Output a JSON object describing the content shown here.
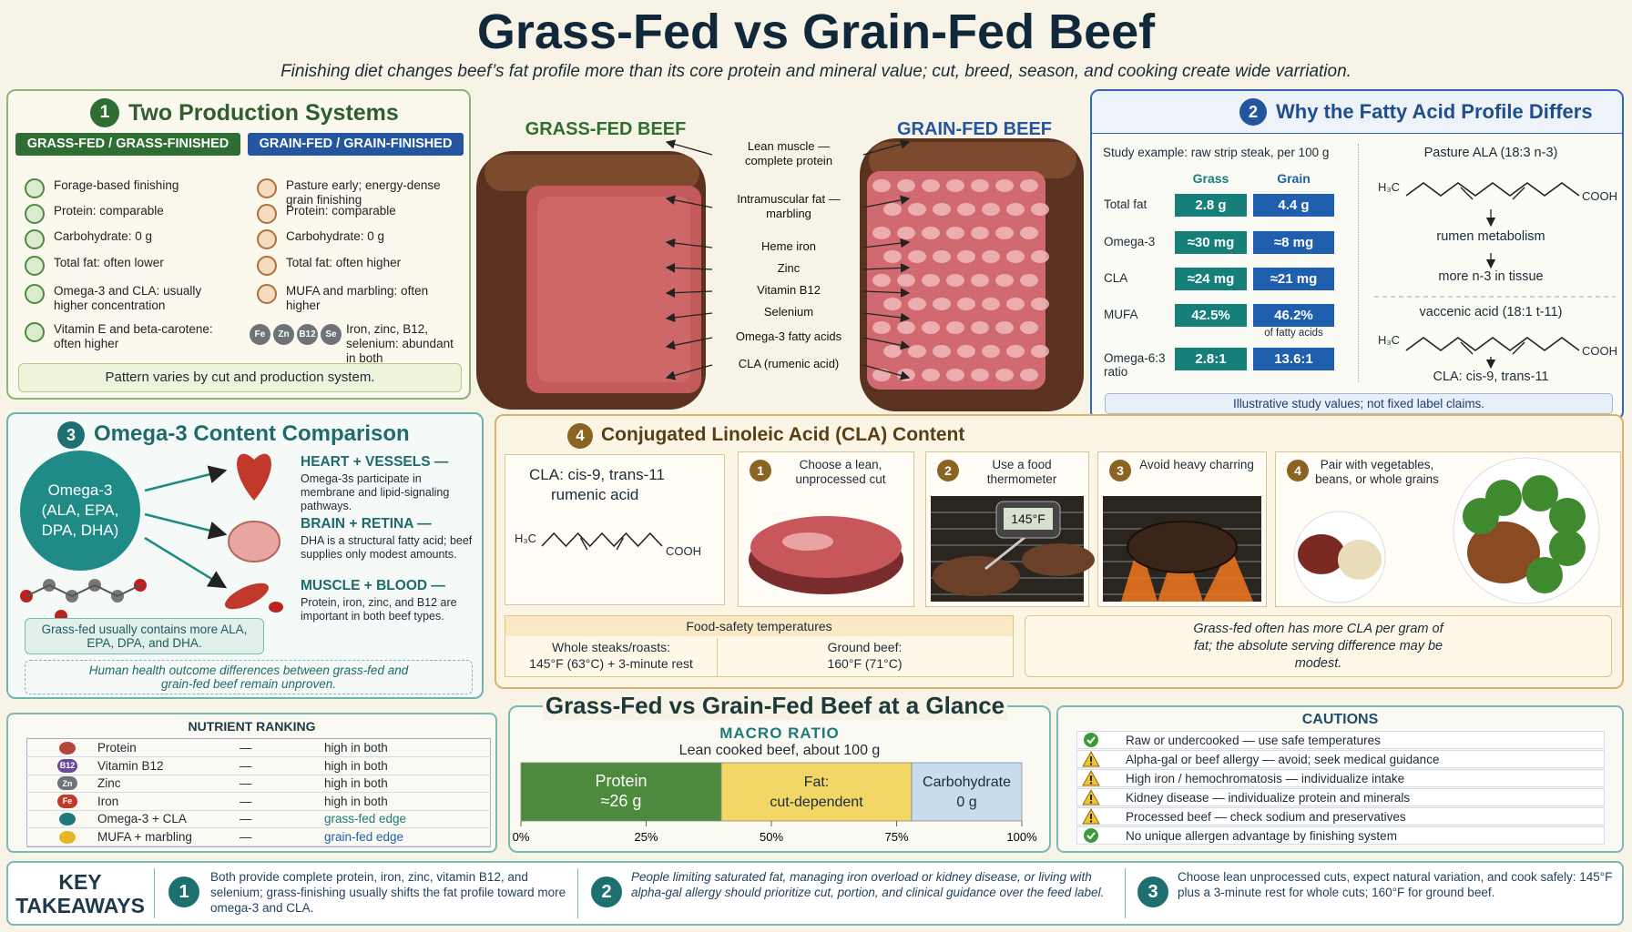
{
  "header": {
    "title": "Grass-Fed vs Grain-Fed Beef",
    "subtitle": "Finishing diet changes beef’s fat profile more than its core protein and mineral value; cut, breed, season, and cooking create wide varriation."
  },
  "production": {
    "number": "1",
    "title": "Two Production Systems",
    "columns": [
      {
        "header": "GRASS-FED / GRASS-FINISHED",
        "items": [
          "Forage-based finishing",
          "Protein: comparable",
          "Carbohydrate: 0 g",
          "Total fat: often lower",
          "Omega-3 and CLA: usually higher concentration",
          "Vitamin E and beta-carotene: often higher"
        ]
      },
      {
        "header": "GRAIN-FED / GRAIN-FINISHED",
        "items": [
          "Pasture early; energy-dense grain finishing",
          "Protein: comparable",
          "Carbohydrate: 0 g",
          "Total fat: often higher",
          "MUFA and marbling: often higher",
          "Iron, zinc, B12, selenium: abundant in both"
        ]
      }
    ],
    "minerals": [
      "Fe",
      "Zn",
      "B12",
      "Se"
    ],
    "note": "Pattern varies by cut and production system."
  },
  "steaks": {
    "grass_label": "GRASS-FED BEEF",
    "grain_label": "GRAIN-FED BEEF",
    "labels": [
      "Lean muscle — complete protein",
      "Intramuscular fat — marbling",
      "Heme iron",
      "Zinc",
      "Vitamin B12",
      "Selenium",
      "Omega-3 fatty acids",
      "CLA (rumenic acid)"
    ]
  },
  "fatty": {
    "number": "2",
    "title": "Why the Fatty Acid Profile Differs",
    "study": "Study example: raw strip steak, per 100 g",
    "col_headers": [
      "Grass",
      "Grain"
    ],
    "rows": [
      {
        "label": "Total fat",
        "grass": "2.8 g",
        "grain": "4.4 g"
      },
      {
        "label": "Omega-3",
        "grass": "≈30 mg",
        "grain": "≈8 mg"
      },
      {
        "label": "CLA",
        "grass": "≈24 mg",
        "grain": "≈21 mg"
      },
      {
        "label": "MUFA",
        "grass": "42.5%",
        "grain": "46.2%"
      },
      {
        "label": "Omega-6:3 ratio",
        "grass": "2.8:1",
        "grain": "13.6:1"
      }
    ],
    "mufa_note": "of fatty acids",
    "pathway": {
      "ala": "Pasture ALA (18:3 n-3)",
      "step1": "rumen metabolism",
      "step2": "more n-3 in tissue",
      "vaccenic": "vaccenic acid (18:1 t-11)",
      "cla": "CLA: cis-9, trans-11"
    },
    "methyl": "H₃C",
    "carboxyl": "COOH",
    "footnote": "Illustrative study values; not fixed label claims."
  },
  "omega": {
    "number": "3",
    "title": "Omega-3 Content Comparison",
    "center": "Omega-3 (ALA, EPA, DPA, DHA)",
    "items": [
      {
        "title": "HEART + VESSELS —",
        "text": "Omega-3s participate in membrane and lipid-signaling pathways."
      },
      {
        "title": "BRAIN + RETINA —",
        "text": "DHA is a structural fatty acid; beef supplies only modest amounts."
      },
      {
        "title": "MUSCLE + BLOOD —",
        "text": "Protein, iron, zinc, and B12 are important in both beef types."
      }
    ],
    "note": "Grass-fed usually contains more ALA, EPA, DPA, and DHA.",
    "caveat": "Human health outcome differences between grass-fed and grain-fed beef remain unproven."
  },
  "cla": {
    "number": "4",
    "title": "Conjugated Linoleic Acid (CLA) Content",
    "structure_label": "CLA: cis-9, trans-11",
    "structure_name": "rumenic acid",
    "tips": [
      {
        "number": "1",
        "text": "Choose a lean, unprocessed cut"
      },
      {
        "number": "2",
        "text": "Use a food thermometer"
      },
      {
        "number": "3",
        "text": "Avoid heavy charring"
      },
      {
        "number": "4",
        "text": "Pair with vegetables, beans, or whole grains"
      }
    ],
    "thermometer": "145°F",
    "safety": {
      "title": "Food-safety temperatures",
      "cells": [
        {
          "label": "Whole steaks/roasts:",
          "value": "145°F (63°C) + 3-minute rest"
        },
        {
          "label": "Ground beef:",
          "value": "160°F (71°C)"
        }
      ]
    },
    "note": "Grass-fed often has more CLA per gram of fat; the absolute serving difference may be modest."
  },
  "glance": {
    "title": "Grass-Fed vs Grain-Fed Beef at a Glance"
  },
  "ranking": {
    "title": "NUTRIENT RANKING",
    "separator": "—",
    "rows": [
      {
        "name": "Protein",
        "value": "high in both",
        "color": "#1d2b36"
      },
      {
        "badge": "B12",
        "name": "Vitamin B12",
        "value": "high in both",
        "color": "#1d2b36"
      },
      {
        "badge": "Zn",
        "name": "Zinc",
        "value": "high in both",
        "color": "#1d2b36"
      },
      {
        "badge": "Fe",
        "name": "Iron",
        "value": "high in both",
        "color": "#1d2b36"
      },
      {
        "name": "Omega-3 + CLA",
        "value": "grass-fed edge",
        "color": "#1e7a7a"
      },
      {
        "name": "MUFA + marbling",
        "value": "grain-fed edge",
        "color": "#1f5fad"
      }
    ]
  },
  "macro": {
    "title": "MACRO RATIO",
    "subtitle": "Lean cooked beef, about 100 g",
    "segments": [
      {
        "name": "Protein",
        "label": "≈26 g",
        "share": 40,
        "color": "#4e8a3e"
      },
      {
        "name": "Fat:",
        "label": "cut-dependent",
        "share": 38,
        "color": "#f2d766"
      },
      {
        "name": "Carbohydrate",
        "label": "0 g",
        "share": 22,
        "color": "#c8dcee"
      }
    ],
    "xlim": [
      0,
      100
    ],
    "xticks": [
      {
        "value": 0,
        "label": "0%"
      },
      {
        "value": 25,
        "label": "25%"
      },
      {
        "value": 50,
        "label": "50%"
      },
      {
        "value": 75,
        "label": "75%"
      },
      {
        "value": 100,
        "label": "100%"
      }
    ]
  },
  "cautions": {
    "title": "CAUTIONS",
    "items": [
      {
        "kind": "ok",
        "text": "Raw or undercooked — use safe temperatures"
      },
      {
        "kind": "warn",
        "text": "Alpha-gal or beef allergy — avoid; seek medical guidance"
      },
      {
        "kind": "warn",
        "text": "High iron / hemochromatosis — individualize intake"
      },
      {
        "kind": "warn",
        "text": "Kidney disease — individualize protein and minerals"
      },
      {
        "kind": "warn",
        "text": "Processed beef — check sodium and preservatives"
      },
      {
        "kind": "ok",
        "text": "No unique allergen advantage by finishing system"
      }
    ]
  },
  "takeaways": {
    "label": "KEY TAKEAWAYS",
    "items": [
      {
        "number": "1",
        "text": "Both provide complete protein, iron, zinc, vitamin B12, and selenium; grass-finishing usually shifts the fat profile toward more omega-3 and CLA."
      },
      {
        "number": "2",
        "text": "People limiting saturated fat, managing iron overload or kidney disease, or living with alpha-gal allergy should prioritize cut, portion, and clinical guidance over the feed label."
      },
      {
        "number": "3",
        "text": "Choose lean unprocessed cuts, expect natural variation, and cook safely: 145°F plus a 3-minute rest for whole cuts; 160°F for ground beef."
      }
    ]
  }
}
